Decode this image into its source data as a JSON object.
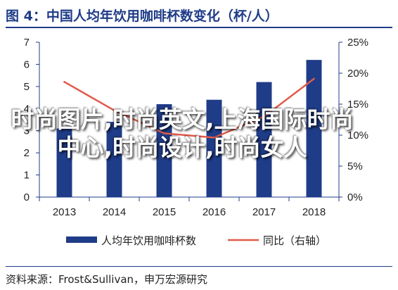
{
  "figure": {
    "title": "图 4：中国人均年饮用咖啡杯数变化（杯/人）",
    "source": "资料来源：Frost&Sullivan，申万宏源研究"
  },
  "overlay_text": "时尚图片,时尚英文,上海国际时尚中心,时尚设计,时尚女人",
  "colors": {
    "bar": "#1f3c88",
    "line": "#e15a4a",
    "axis": "#1f3c88",
    "title": "#1f3c88"
  },
  "chart_data": {
    "type": "bar",
    "categories": [
      "2013",
      "2014",
      "2015",
      "2016",
      "2017",
      "2018"
    ],
    "series": [
      {
        "name": "人均年饮用咖啡杯数",
        "type": "bar",
        "axis": "left",
        "values": [
          3.1,
          3.4,
          4.2,
          4.4,
          5.2,
          6.2
        ]
      },
      {
        "name": "同比（右轴）",
        "type": "line",
        "axis": "right",
        "values": [
          18.6,
          14.0,
          10.3,
          9.6,
          13.0,
          19.1
        ]
      }
    ],
    "left_axis": {
      "ylim": [
        0,
        7
      ],
      "ticks": [
        "0",
        "1",
        "2",
        "3",
        "4",
        "5",
        "6",
        "7"
      ]
    },
    "right_axis": {
      "ylim": [
        0,
        25
      ],
      "ticks": [
        "0%",
        "5%",
        "10%",
        "15%",
        "20%",
        "25%"
      ]
    },
    "legend": {
      "position": "bottom",
      "items": [
        "人均年饮用咖啡杯数",
        "同比（右轴）"
      ]
    },
    "grid": false
  }
}
